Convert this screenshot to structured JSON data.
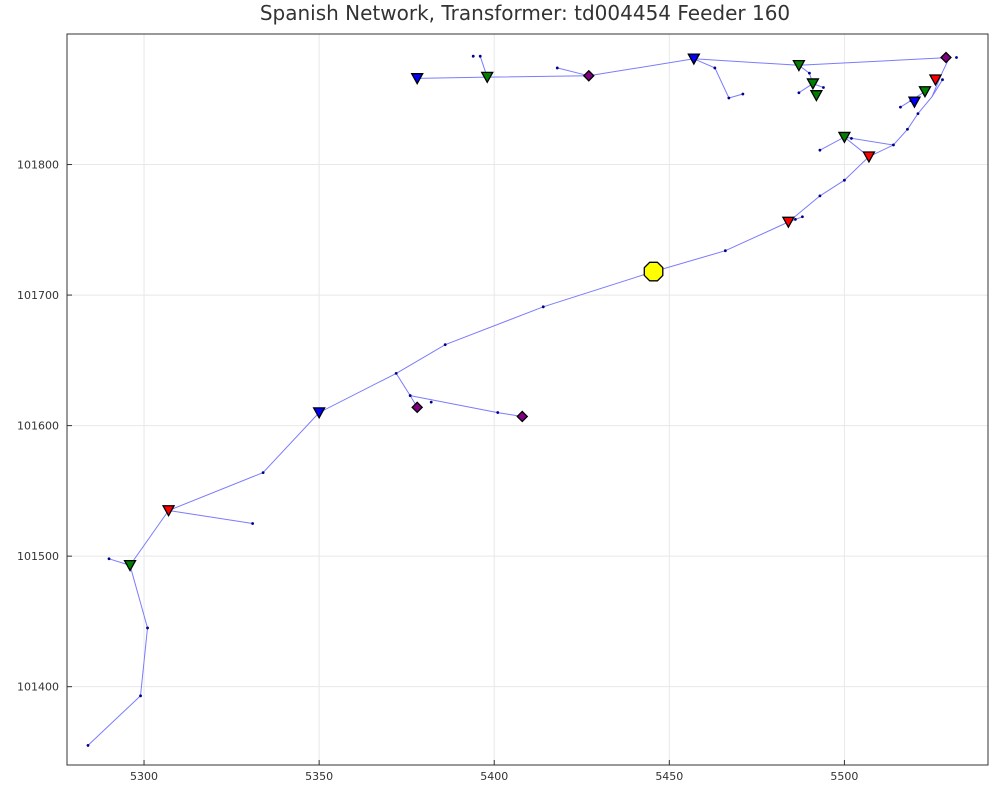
{
  "chart_data": {
    "type": "scatter",
    "title": "Spanish Network, Transformer: td004454 Feeder 160",
    "xlabel": "",
    "ylabel": "",
    "xlim": [
      5278,
      5541
    ],
    "ylim": [
      101340,
      101900
    ],
    "xticks": [
      5300,
      5350,
      5400,
      5450,
      5500
    ],
    "yticks": [
      101400,
      101500,
      101600,
      101700,
      101800
    ],
    "grid": true,
    "colors": {
      "edge": "#7b7bff",
      "bus": "#00008b",
      "transformer": "#ffff00",
      "red": "#ff0000",
      "green": "#008000",
      "blue": "#0000ff",
      "purple": "#800080"
    },
    "transformer": {
      "x": 5445.5,
      "y": 101718
    },
    "edges": [
      [
        [
          5445.5,
          101718
        ],
        [
          5466,
          101734
        ],
        [
          5484,
          101756
        ]
      ],
      [
        [
          5484,
          101756
        ],
        [
          5493,
          101776
        ],
        [
          5500,
          101788
        ],
        [
          5507,
          101806
        ],
        [
          5514,
          101815
        ],
        [
          5518,
          101827
        ],
        [
          5521,
          101839
        ],
        [
          5525,
          101852
        ],
        [
          5528,
          101871
        ],
        [
          5530,
          101882
        ]
      ],
      [
        [
          5445.5,
          101718
        ],
        [
          5414,
          101691
        ],
        [
          5386,
          101662
        ],
        [
          5372,
          101640
        ],
        [
          5350,
          101610
        ],
        [
          5334,
          101564
        ],
        [
          5307,
          101535
        ],
        [
          5296,
          101493
        ],
        [
          5301,
          101445
        ],
        [
          5299,
          101393
        ],
        [
          5284,
          101355
        ]
      ],
      [
        [
          5372,
          101640
        ],
        [
          5376,
          101623
        ],
        [
          5378,
          101614
        ]
      ],
      [
        [
          5376,
          101623
        ],
        [
          5401,
          101610
        ],
        [
          5408,
          101607
        ]
      ],
      [
        [
          5307,
          101535
        ],
        [
          5331,
          101525
        ]
      ],
      [
        [
          5296,
          101493
        ],
        [
          5290,
          101498
        ]
      ],
      [
        [
          5500,
          101821
        ],
        [
          5507,
          101806
        ]
      ],
      [
        [
          5514,
          101815
        ],
        [
          5500,
          101821
        ],
        [
          5493,
          101811
        ]
      ],
      [
        [
          5484,
          101756
        ],
        [
          5488,
          101760
        ]
      ],
      [
        [
          5378,
          101866
        ],
        [
          5398,
          101867
        ],
        [
          5427,
          101868
        ],
        [
          5457,
          101881
        ],
        [
          5487,
          101876
        ],
        [
          5530,
          101882
        ]
      ],
      [
        [
          5457,
          101881
        ],
        [
          5463,
          101874
        ],
        [
          5467,
          101851
        ],
        [
          5471,
          101854
        ]
      ],
      [
        [
          5487,
          101876
        ],
        [
          5490,
          101870
        ],
        [
          5491,
          101862
        ],
        [
          5494,
          101859
        ]
      ],
      [
        [
          5491,
          101862
        ],
        [
          5487,
          101855
        ]
      ],
      [
        [
          5427,
          101868
        ],
        [
          5418,
          101874
        ]
      ],
      [
        [
          5398,
          101867
        ],
        [
          5396,
          101883
        ]
      ],
      [
        [
          5523,
          101856
        ],
        [
          5519,
          101849
        ],
        [
          5516,
          101844
        ]
      ],
      [
        [
          5525,
          101852
        ],
        [
          5528,
          101865
        ]
      ]
    ],
    "buses": [
      [
        5466,
        101734
      ],
      [
        5493,
        101776
      ],
      [
        5500,
        101788
      ],
      [
        5507,
        101806
      ],
      [
        5514,
        101815
      ],
      [
        5518,
        101827
      ],
      [
        5521,
        101839
      ],
      [
        5414,
        101691
      ],
      [
        5386,
        101662
      ],
      [
        5372,
        101640
      ],
      [
        5334,
        101564
      ],
      [
        5301,
        101445
      ],
      [
        5299,
        101393
      ],
      [
        5284,
        101355
      ],
      [
        5376,
        101623
      ],
      [
        5401,
        101610
      ],
      [
        5331,
        101525
      ],
      [
        5290,
        101498
      ],
      [
        5493,
        101811
      ],
      [
        5488,
        101760
      ],
      [
        5502,
        101820
      ],
      [
        5463,
        101874
      ],
      [
        5467,
        101851
      ],
      [
        5471,
        101854
      ],
      [
        5494,
        101859
      ],
      [
        5487,
        101855
      ],
      [
        5490,
        101870
      ],
      [
        5418,
        101874
      ],
      [
        5396,
        101883
      ],
      [
        5394,
        101883
      ],
      [
        5516,
        101844
      ],
      [
        5519,
        101849
      ],
      [
        5528,
        101865
      ],
      [
        5532,
        101882
      ],
      [
        5382,
        101618
      ],
      [
        5486,
        101758
      ]
    ],
    "loads": [
      {
        "shape": "triangle",
        "color": "red",
        "x": 5484,
        "y": 101756
      },
      {
        "shape": "triangle",
        "color": "red",
        "x": 5507,
        "y": 101806
      },
      {
        "shape": "triangle",
        "color": "red",
        "x": 5307,
        "y": 101535
      },
      {
        "shape": "triangle",
        "color": "red",
        "x": 5526,
        "y": 101865
      },
      {
        "shape": "triangle",
        "color": "green",
        "x": 5296,
        "y": 101493
      },
      {
        "shape": "triangle",
        "color": "green",
        "x": 5500,
        "y": 101821
      },
      {
        "shape": "triangle",
        "color": "green",
        "x": 5398,
        "y": 101867
      },
      {
        "shape": "triangle",
        "color": "green",
        "x": 5487,
        "y": 101876
      },
      {
        "shape": "triangle",
        "color": "green",
        "x": 5491,
        "y": 101862
      },
      {
        "shape": "triangle",
        "color": "green",
        "x": 5492,
        "y": 101853
      },
      {
        "shape": "triangle",
        "color": "green",
        "x": 5523,
        "y": 101856
      },
      {
        "shape": "triangle",
        "color": "blue",
        "x": 5350,
        "y": 101610
      },
      {
        "shape": "triangle",
        "color": "blue",
        "x": 5378,
        "y": 101866
      },
      {
        "shape": "triangle",
        "color": "blue",
        "x": 5457,
        "y": 101881
      },
      {
        "shape": "triangle",
        "color": "blue",
        "x": 5520,
        "y": 101848
      },
      {
        "shape": "diamond",
        "color": "purple",
        "x": 5378,
        "y": 101614
      },
      {
        "shape": "diamond",
        "color": "purple",
        "x": 5408,
        "y": 101607
      },
      {
        "shape": "diamond",
        "color": "purple",
        "x": 5427,
        "y": 101868
      },
      {
        "shape": "diamond",
        "color": "purple",
        "x": 5529,
        "y": 101882
      }
    ]
  }
}
